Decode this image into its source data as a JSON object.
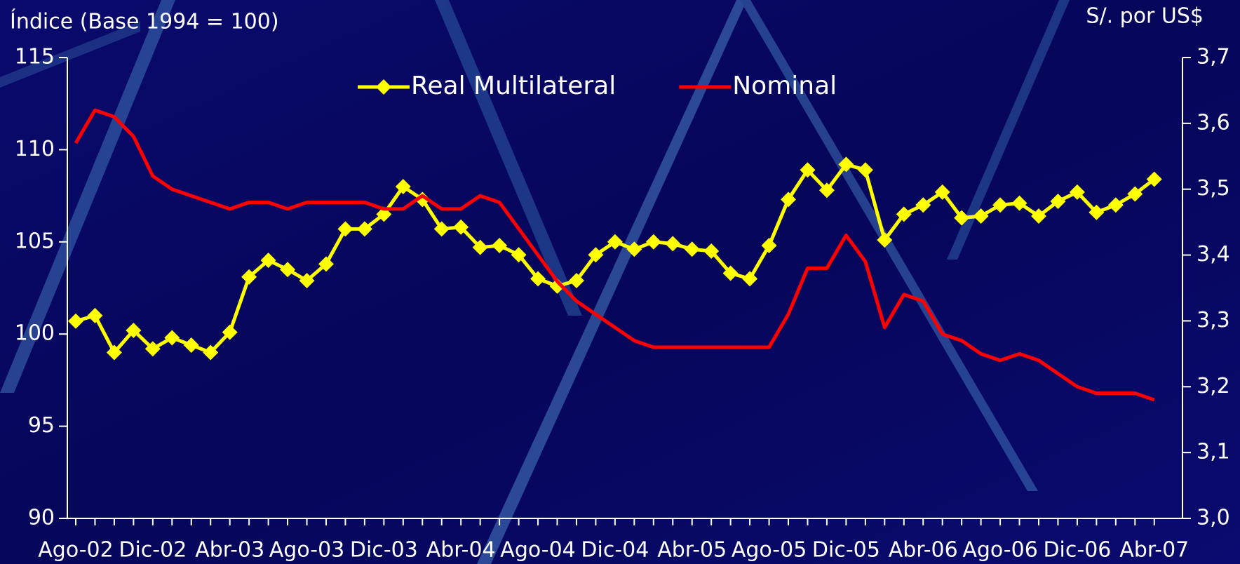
{
  "chart_data": {
    "type": "line",
    "y_label": "Índice (Base 1994 = 100)",
    "y2_label": "S/. por US$",
    "categories": [
      "Ago-02",
      null,
      null,
      null,
      "Dic-02",
      null,
      null,
      null,
      "Abr-03",
      null,
      null,
      null,
      "Ago-03",
      null,
      null,
      null,
      "Dic-03",
      null,
      null,
      null,
      "Abr-04",
      null,
      null,
      null,
      "Ago-04",
      null,
      null,
      null,
      "Dic-04",
      null,
      null,
      null,
      "Abr-05",
      null,
      null,
      null,
      "Ago-05",
      null,
      null,
      null,
      "Dic-05",
      null,
      null,
      null,
      "Abr-06",
      null,
      null,
      null,
      "Ago-06",
      null,
      null,
      null,
      "Dic-06",
      null,
      null,
      null,
      "Abr-07"
    ],
    "series": [
      {
        "name": "Real Multilateral",
        "color": "#ffff00",
        "marker": "diamond",
        "values": [
          100.7,
          101.0,
          99.0,
          100.2,
          99.2,
          99.8,
          99.4,
          99.0,
          100.1,
          103.1,
          104.0,
          103.5,
          102.9,
          103.8,
          105.7,
          105.7,
          106.5,
          108.0,
          107.3,
          105.7,
          105.8,
          104.7,
          104.8,
          104.3,
          103.0,
          102.6,
          102.9,
          104.3,
          105.0,
          104.6,
          105.0,
          104.9,
          104.6,
          104.5,
          103.3,
          103.0,
          104.8,
          107.3,
          108.9,
          107.8,
          109.2,
          108.9,
          105.1,
          106.5,
          107.0,
          107.7,
          106.3,
          106.4,
          107.0,
          107.1,
          106.4,
          107.2,
          107.7,
          106.6,
          107.0,
          107.6,
          108.4
        ]
      },
      {
        "name": "Nominal",
        "color": "#ff0000",
        "axis": "y2",
        "values": [
          3.57,
          3.62,
          3.61,
          3.58,
          3.52,
          3.5,
          3.49,
          3.48,
          3.47,
          3.48,
          3.48,
          3.47,
          3.48,
          3.48,
          3.48,
          3.48,
          3.47,
          3.47,
          3.49,
          3.47,
          3.47,
          3.49,
          3.48,
          3.44,
          3.4,
          3.36,
          3.33,
          3.31,
          3.29,
          3.27,
          3.26,
          3.26,
          3.26,
          3.26,
          3.26,
          3.26,
          3.26,
          3.31,
          3.38,
          3.38,
          3.43,
          3.39,
          3.29,
          3.34,
          3.33,
          3.28,
          3.27,
          3.25,
          3.24,
          3.25,
          3.24,
          3.22,
          3.2,
          3.19,
          3.19,
          3.19,
          3.18
        ]
      }
    ],
    "ylim": [
      90,
      115
    ],
    "yticks": [
      90,
      95,
      100,
      105,
      110,
      115
    ],
    "y2lim": [
      3.0,
      3.7
    ],
    "y2ticks": [
      {
        "value": 3.0,
        "label": "3,0"
      },
      {
        "value": 3.1,
        "label": "3,1"
      },
      {
        "value": 3.2,
        "label": "3,2"
      },
      {
        "value": 3.3,
        "label": "3,3"
      },
      {
        "value": 3.4,
        "label": "3,4"
      },
      {
        "value": 3.5,
        "label": "3,5"
      },
      {
        "value": 3.6,
        "label": "3,6"
      },
      {
        "value": 3.7,
        "label": "3,7"
      }
    ],
    "legend": "top"
  }
}
